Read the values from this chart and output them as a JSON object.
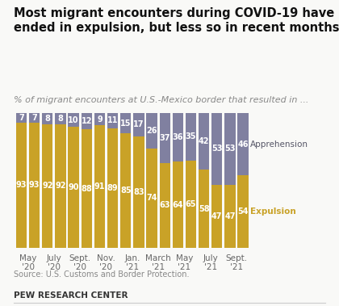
{
  "title_line1": "Most migrant encounters during COVID-19 have",
  "title_line2": "ended in expulsion, but less so in recent months",
  "subtitle": "% of migrant encounters at U.S.-Mexico border that resulted in ...",
  "source": "Source: U.S. Customs and Border Protection.",
  "footer": "PEW RESEARCH CENTER",
  "expulsion": [
    93,
    93,
    92,
    92,
    90,
    88,
    91,
    89,
    85,
    83,
    74,
    63,
    64,
    65,
    58,
    47,
    47,
    54
  ],
  "apprehension": [
    7,
    7,
    8,
    8,
    10,
    12,
    9,
    11,
    15,
    17,
    26,
    37,
    36,
    35,
    42,
    53,
    53,
    46
  ],
  "expulsion_color": "#c9a227",
  "apprehension_color": "#8080a0",
  "bar_width": 0.82,
  "ylim": [
    0,
    100
  ],
  "expulsion_label": "Expulsion",
  "apprehension_label": "Apprehension",
  "group_labels": [
    "May\n'20",
    "July\n'20",
    "Sept.\n'20",
    "Nov.\n'20",
    "Jan.\n'21",
    "March\n'21",
    "May\n'21",
    "July\n'21",
    "Sept.\n'21"
  ],
  "title_fontsize": 10.5,
  "subtitle_fontsize": 8,
  "label_fontsize": 7,
  "tick_fontsize": 7.5,
  "bg_color": "#f9f9f7"
}
